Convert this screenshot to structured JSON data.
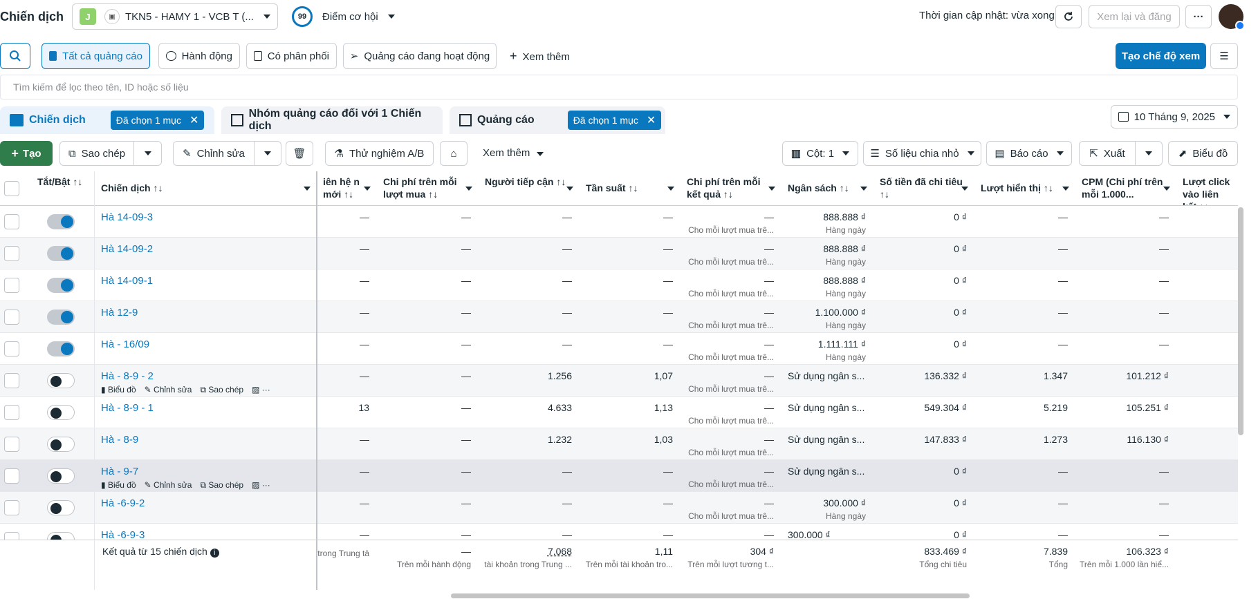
{
  "header": {
    "title": "Chiến dịch",
    "account_initial": "J",
    "account_name": "TKN5 - HAMY 1 - VCB T (...",
    "score_value": "99",
    "score_label": "Điểm cơ hội",
    "update_text": "Thời gian cập nhật: vừa xong",
    "review_publish_label": "Xem lại và đăng",
    "more_label": "···"
  },
  "filters": {
    "items": [
      "Tất cả quảng cáo",
      "Hành động",
      "Có phân phối",
      "Quảng cáo đang hoạt động"
    ],
    "more_label": "Xem thêm",
    "create_view_label": "Tạo chế độ xem"
  },
  "search": {
    "placeholder": "Tìm kiếm để lọc theo tên, ID hoặc số liệu"
  },
  "tabs": {
    "campaigns": "Chiến dịch",
    "campaigns_chip": "Đã chọn 1 mục",
    "adsets": "Nhóm quảng cáo đối với 1 Chiến dịch",
    "ads": "Quảng cáo",
    "ads_chip": "Đã chọn 1 mục",
    "date": "10 Tháng 9, 2025"
  },
  "toolbar": {
    "create": "Tạo",
    "copy": "Sao chép",
    "edit": "Chỉnh sửa",
    "ab_test": "Thử nghiệm A/B",
    "more": "Xem thêm",
    "columns": "Cột: 1",
    "breakdown": "Số liệu chia nhỏ",
    "reports": "Báo cáo",
    "export": "Xuất",
    "chart": "Biểu đồ"
  },
  "columns": {
    "toggle": "Tắt/Bật ↑↓",
    "campaign": "Chiến dịch ↑↓",
    "contact": "iên hệ n mới ↑↓",
    "cost_purchase": "Chi phí trên mỗi lượt mua ↑↓",
    "reach": "Người tiếp cận ↑↓",
    "frequency": "Tần suất ↑↓",
    "cost_result": "Chi phí trên mỗi kết quả ↑↓",
    "budget": "Ngân sách ↑↓",
    "spent": "Số tiền đã chi tiêu ↑↓",
    "impressions": "Lượt hiển thị ↑↓",
    "cpm": "CPM (Chi phí trên mỗi 1.000...",
    "link_clicks": "Lượt click vào liên kết ↑↓"
  },
  "row_actions": {
    "chart": "Biểu đồ",
    "edit": "Chỉnh sửa",
    "copy": "Sao chép"
  },
  "rows": [
    {
      "name": "Hà 14-09-3",
      "contact": "—",
      "cost_purchase": "—",
      "reach": "—",
      "frequency": "—",
      "cost_result": "—",
      "cost_result_sub": "Cho mỗi lượt mua trê...",
      "budget": "888.888 ₫",
      "budget_sub": "Hàng ngày",
      "spent": "0 ₫",
      "impressions": "—",
      "cpm": "—"
    },
    {
      "name": "Hà 14-09-2",
      "contact": "—",
      "cost_purchase": "—",
      "reach": "—",
      "frequency": "—",
      "cost_result": "—",
      "cost_result_sub": "Cho mỗi lượt mua trê...",
      "budget": "888.888 ₫",
      "budget_sub": "Hàng ngày",
      "spent": "0 ₫",
      "impressions": "—",
      "cpm": "—"
    },
    {
      "name": "Hà 14-09-1",
      "contact": "—",
      "cost_purchase": "—",
      "reach": "—",
      "frequency": "—",
      "cost_result": "—",
      "cost_result_sub": "Cho mỗi lượt mua trê...",
      "budget": "888.888 ₫",
      "budget_sub": "Hàng ngày",
      "spent": "0 ₫",
      "impressions": "—",
      "cpm": "—"
    },
    {
      "name": "Hà 12-9",
      "contact": "—",
      "cost_purchase": "—",
      "reach": "—",
      "frequency": "—",
      "cost_result": "—",
      "cost_result_sub": "Cho mỗi lượt mua trê...",
      "budget": "1.100.000 ₫",
      "budget_sub": "Hàng ngày",
      "spent": "0 ₫",
      "impressions": "—",
      "cpm": "—"
    },
    {
      "name": "Hà - 16/09",
      "contact": "—",
      "cost_purchase": "—",
      "reach": "—",
      "frequency": "—",
      "cost_result": "—",
      "cost_result_sub": "Cho mỗi lượt mua trê...",
      "budget": "1.111.111 ₫",
      "budget_sub": "Hàng ngày",
      "spent": "0 ₫",
      "impressions": "—",
      "cpm": "—"
    },
    {
      "name": "Hà - 8-9 - 2",
      "contact": "—",
      "cost_purchase": "—",
      "reach": "1.256",
      "frequency": "1,07",
      "cost_result": "—",
      "cost_result_sub": "Cho mỗi lượt mua trê...",
      "budget": "Sử dụng ngân s...",
      "budget_sub": "",
      "spent": "136.332 ₫",
      "impressions": "1.347",
      "cpm": "101.212 ₫"
    },
    {
      "name": "Hà - 8-9 - 1",
      "contact": "13",
      "cost_purchase": "—",
      "reach": "4.633",
      "frequency": "1,13",
      "cost_result": "—",
      "cost_result_sub": "Cho mỗi lượt mua trê...",
      "budget": "Sử dụng ngân s...",
      "budget_sub": "",
      "spent": "549.304 ₫",
      "impressions": "5.219",
      "cpm": "105.251 ₫"
    },
    {
      "name": "Hà - 8-9",
      "contact": "—",
      "cost_purchase": "—",
      "reach": "1.232",
      "frequency": "1,03",
      "cost_result": "—",
      "cost_result_sub": "Cho mỗi lượt mua trê...",
      "budget": "Sử dụng ngân s...",
      "budget_sub": "",
      "spent": "147.833 ₫",
      "impressions": "1.273",
      "cpm": "116.130 ₫"
    },
    {
      "name": "Hà - 9-7",
      "contact": "—",
      "cost_purchase": "—",
      "reach": "—",
      "frequency": "—",
      "cost_result": "—",
      "cost_result_sub": "Cho mỗi lượt mua trê...",
      "budget": "Sử dụng ngân s...",
      "budget_sub": "",
      "spent": "0 ₫",
      "impressions": "—",
      "cpm": "—"
    },
    {
      "name": "Hà -6-9-2",
      "contact": "—",
      "cost_purchase": "—",
      "reach": "—",
      "frequency": "—",
      "cost_result": "—",
      "cost_result_sub": "Cho mỗi lượt mua trê...",
      "budget": "300.000 ₫",
      "budget_sub": "Hàng ngày",
      "spent": "0 ₫",
      "impressions": "—",
      "cpm": "—"
    },
    {
      "name": "Hà -6-9-3",
      "contact": "—",
      "cost_purchase": "—",
      "reach": "—",
      "frequency": "—",
      "cost_result": "—",
      "cost_result_sub": "",
      "budget": "300.000 ₫",
      "budget_sub": "",
      "spent": "0 ₫",
      "impressions": "—",
      "cpm": "—"
    }
  ],
  "footer": {
    "results": "Kết quả từ 15 chiến dịch",
    "contact_sub": "trong Trung tâ",
    "cost_purchase": "—",
    "cost_purchase_sub": "Trên mỗi hành động",
    "reach": "7.068",
    "reach_sub": "tài khoản trong Trung ...",
    "frequency": "1,11",
    "frequency_sub": "Trên mỗi tài khoản tro...",
    "cost_result": "304 ₫",
    "cost_result_sub": "Trên mỗi lượt tương t...",
    "spent": "833.469 ₫",
    "spent_sub": "Tổng chi tiêu",
    "impressions": "7.839",
    "impressions_sub": "Tổng",
    "cpm": "106.323 ₫",
    "cpm_sub": "Trên mỗi 1.000 lần hiể..."
  }
}
